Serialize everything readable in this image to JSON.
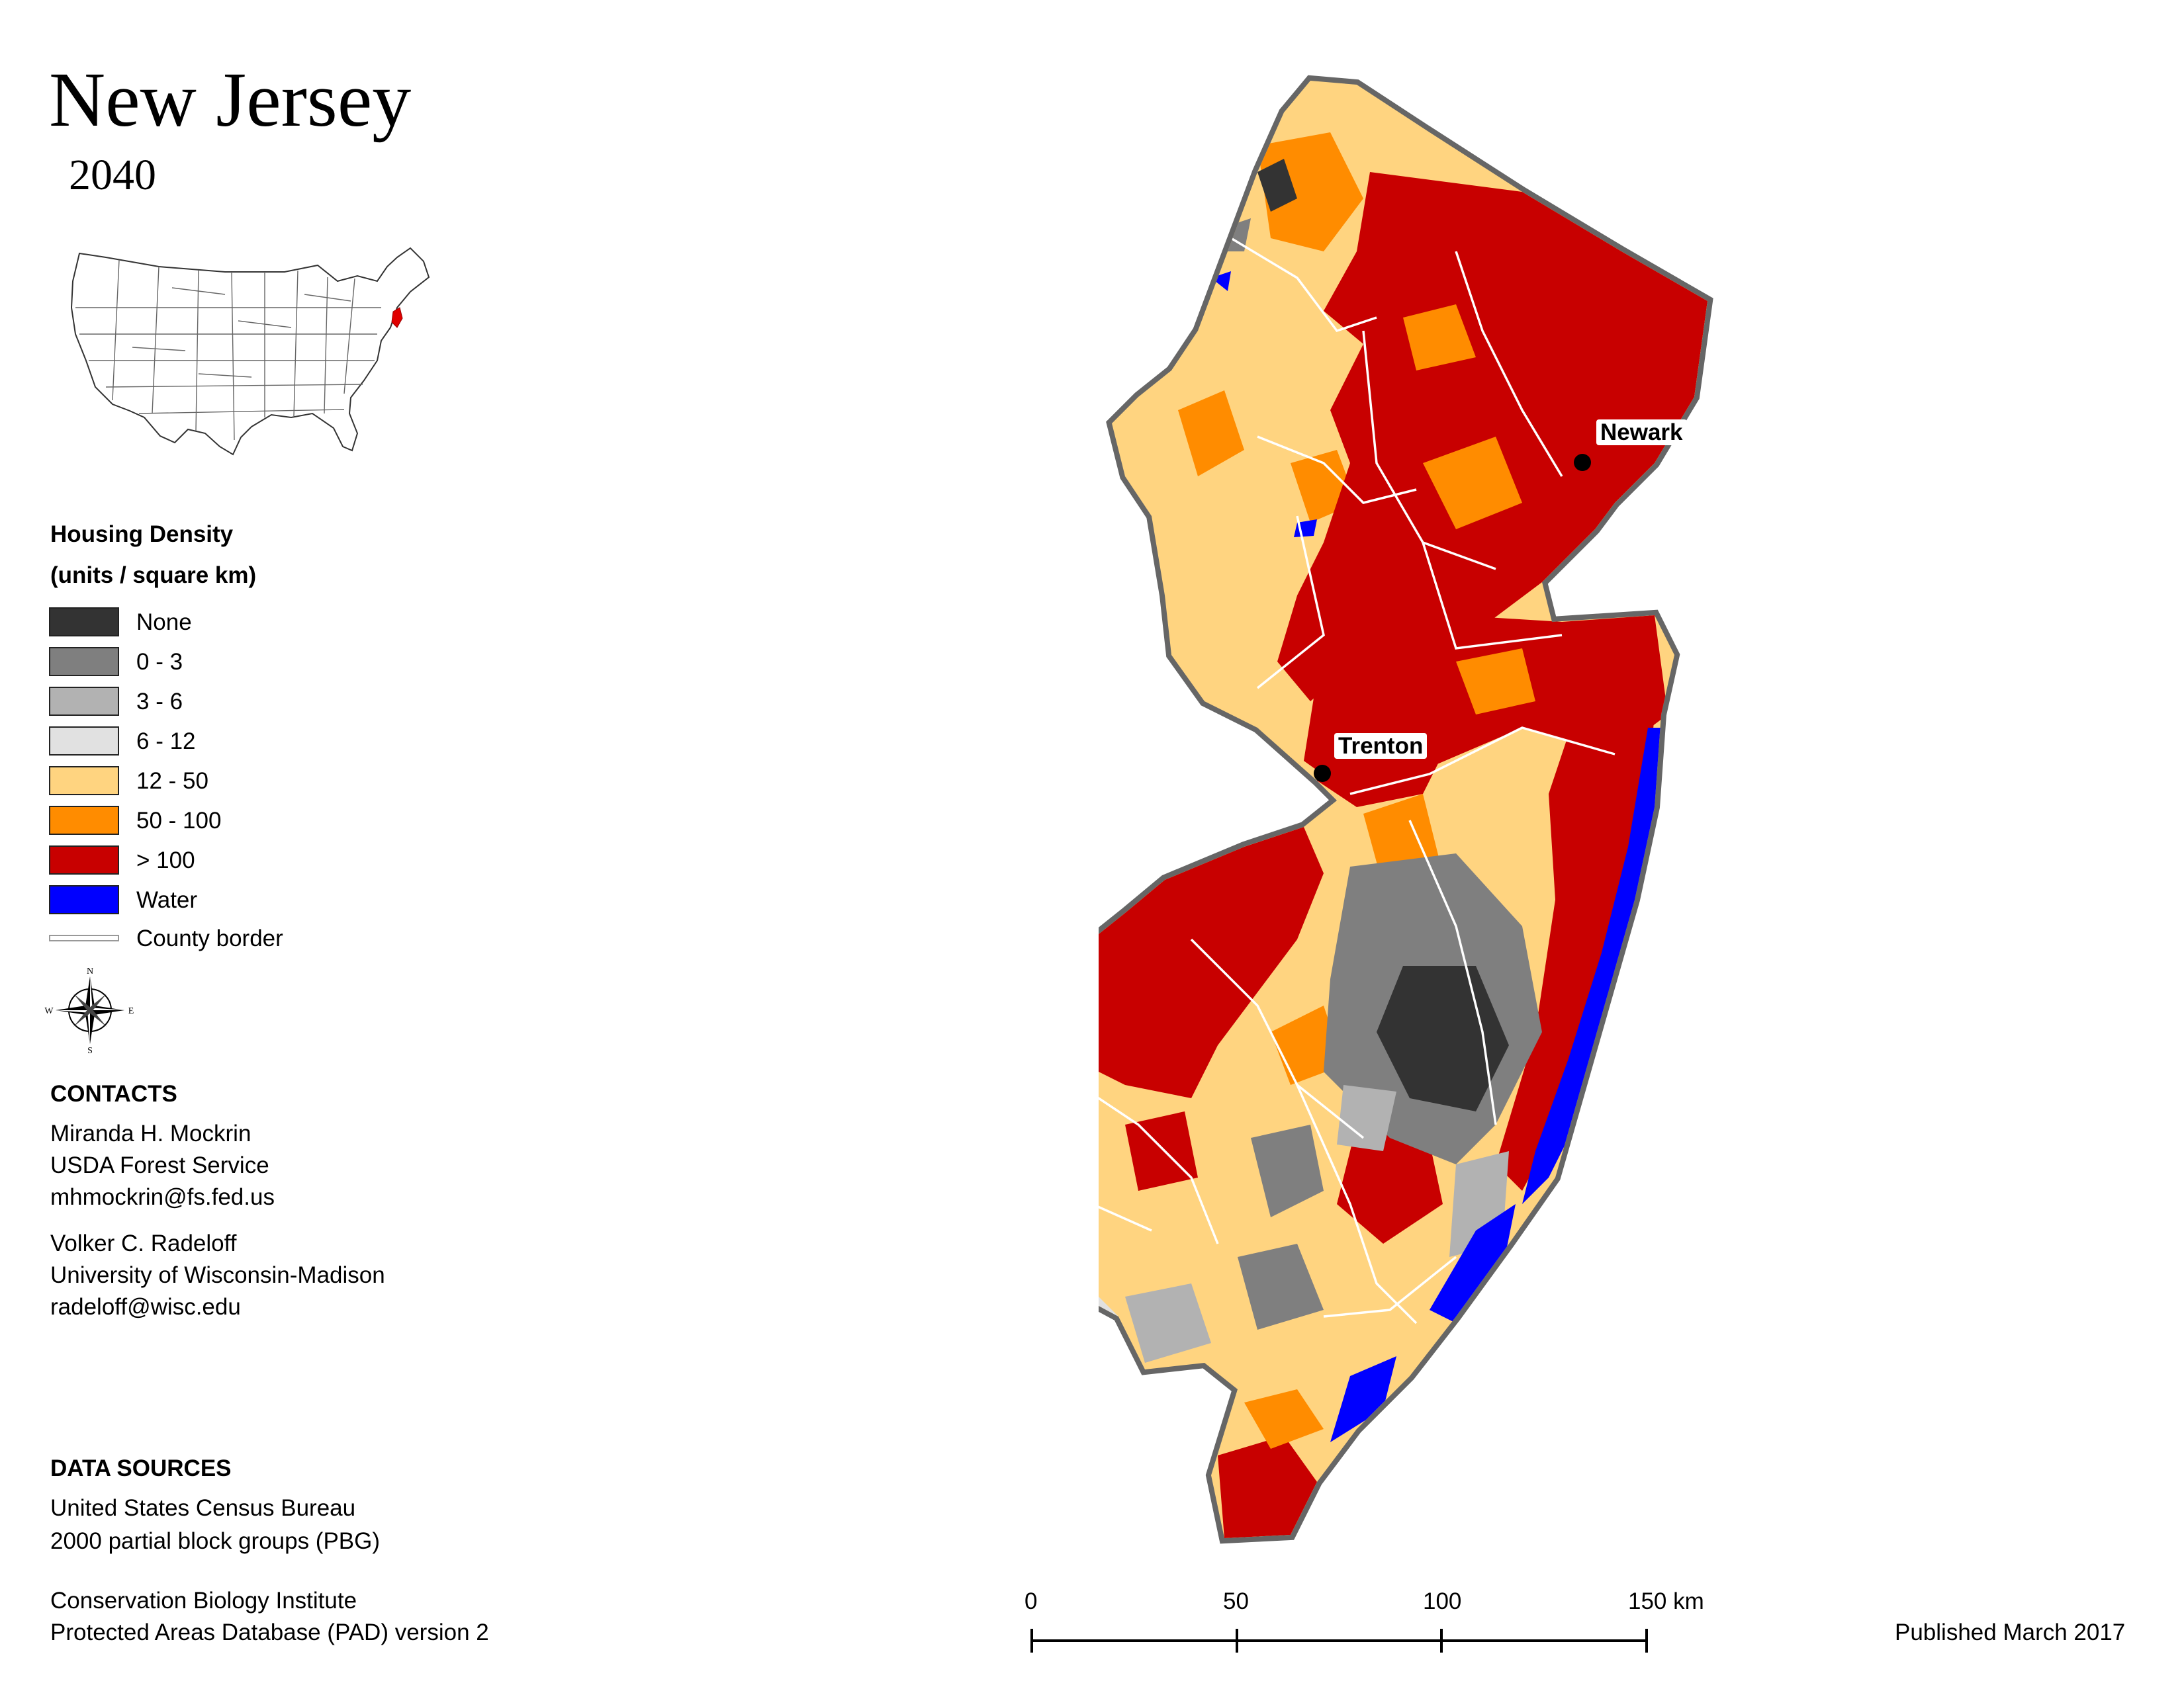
{
  "title": "New Jersey",
  "subtitle": "2040",
  "legend": {
    "title_line1": "Housing Density",
    "title_line2": "(units / square km)",
    "items": [
      {
        "label": "None",
        "color": "#333333"
      },
      {
        "label": "0 - 3",
        "color": "#7f7f7f"
      },
      {
        "label": "3 - 6",
        "color": "#b2b2b2"
      },
      {
        "label": "6 - 12",
        "color": "#e1e1e1"
      },
      {
        "label": "12 - 50",
        "color": "#ffd480"
      },
      {
        "label": "50 - 100",
        "color": "#ff8c00"
      },
      {
        "label": "> 100",
        "color": "#c80000"
      },
      {
        "label": "Water",
        "color": "#0000ff"
      }
    ],
    "county_border_label": "County border"
  },
  "compass": {
    "n": "N",
    "s": "S",
    "e": "E",
    "w": "W"
  },
  "contacts": {
    "heading": "CONTACTS",
    "person1": [
      "Miranda H. Mockrin",
      "USDA Forest Service",
      "mhmockrin@fs.fed.us"
    ],
    "person2": [
      "Volker C. Radeloff",
      "University of Wisconsin-Madison",
      "radeloff@wisc.edu"
    ]
  },
  "data_sources": {
    "heading": "DATA SOURCES",
    "source1": [
      "United States Census Bureau",
      "2000 partial block groups (PBG)"
    ],
    "source2": [
      "Conservation Biology Institute",
      "Protected Areas Database (PAD) version 2"
    ]
  },
  "cities": [
    {
      "name": "Newark"
    },
    {
      "name": "Trenton"
    }
  ],
  "scale_bar": {
    "labels": [
      "0",
      "50",
      "100",
      "150 km"
    ]
  },
  "published": "Published March 2017"
}
